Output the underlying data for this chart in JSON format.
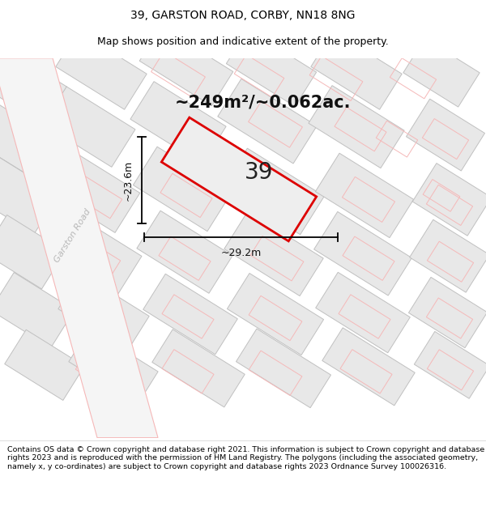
{
  "title_line1": "39, GARSTON ROAD, CORBY, NN18 8NG",
  "title_line2": "Map shows position and indicative extent of the property.",
  "area_text": "~249m²/~0.062ac.",
  "number_label": "39",
  "width_label": "~29.2m",
  "height_label": "~23.6m",
  "road_label": "Garston Road",
  "footer_text": "Contains OS data © Crown copyright and database right 2021. This information is subject to Crown copyright and database rights 2023 and is reproduced with the permission of HM Land Registry. The polygons (including the associated geometry, namely x, y co-ordinates) are subject to Crown copyright and database rights 2023 Ordnance Survey 100026316.",
  "bg_color": "#ffffff",
  "block_fill": "#e8e8e8",
  "block_edge": "#c0c0c0",
  "pink_outline": "#f5b8b8",
  "pink_fill": "#fce8e8",
  "red_color": "#dd0000",
  "prop_fill": "#eeeeee",
  "road_color": "#d8d8d8",
  "title_fontsize": 10,
  "subtitle_fontsize": 9,
  "footer_fontsize": 6.8,
  "area_fontsize": 15,
  "number_fontsize": 20,
  "label_fontsize": 9,
  "road_fontsize": 8
}
